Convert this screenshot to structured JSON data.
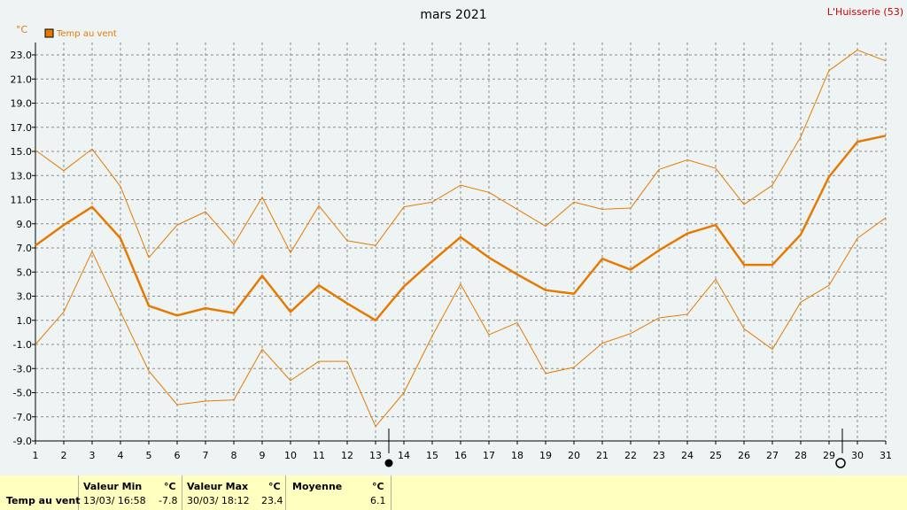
{
  "header": {
    "title": "mars 2021",
    "station": "L'Huisserie (53)",
    "unit": "°C"
  },
  "colors": {
    "background": "#eef4f4",
    "series": "#e67a00",
    "grid": "#909090",
    "station": "#cc0000",
    "stats_bg": "#ffffc0"
  },
  "chart_data": {
    "type": "line",
    "title": "mars 2021",
    "ylabel": "°C",
    "ylim": [
      -9,
      24
    ],
    "y_ticks": [
      "23.0",
      "21.0",
      "19.0",
      "17.0",
      "15.0",
      "13.0",
      "11.0",
      "9.0",
      "7.0",
      "5.0",
      "3.0",
      "1.0",
      "-1.0",
      "-3.0",
      "-5.0",
      "-7.0",
      "-9.0"
    ],
    "x": [
      1,
      2,
      3,
      4,
      5,
      6,
      7,
      8,
      9,
      10,
      11,
      12,
      13,
      14,
      15,
      16,
      17,
      18,
      19,
      20,
      21,
      22,
      23,
      24,
      25,
      26,
      27,
      28,
      29,
      30,
      31
    ],
    "legend": "top-left",
    "grid": true,
    "series": [
      {
        "name": "Temp au vent",
        "role": "mean",
        "values": [
          7.2,
          8.9,
          10.4,
          7.8,
          2.2,
          1.4,
          2.0,
          1.6,
          4.7,
          1.7,
          3.9,
          2.4,
          1.0,
          3.8,
          5.9,
          7.9,
          6.2,
          4.8,
          3.5,
          3.2,
          6.1,
          5.2,
          6.8,
          8.2,
          8.9,
          5.6,
          5.6,
          8.1,
          12.9,
          15.8,
          16.3
        ]
      },
      {
        "role": "max",
        "values": [
          15.1,
          13.4,
          15.2,
          12.1,
          6.2,
          8.9,
          10.0,
          7.3,
          11.2,
          6.6,
          10.5,
          7.6,
          7.2,
          10.4,
          10.8,
          12.2,
          11.6,
          10.2,
          8.8,
          10.8,
          10.2,
          10.3,
          13.5,
          14.3,
          13.6,
          10.6,
          12.2,
          16.2,
          21.7,
          23.4,
          22.5
        ]
      },
      {
        "role": "min",
        "values": [
          -1.0,
          1.7,
          6.7,
          1.7,
          -3.2,
          -6.0,
          -5.7,
          -5.6,
          -1.4,
          -4.0,
          -2.4,
          -2.4,
          -7.8,
          -5.0,
          -0.3,
          4.0,
          -0.2,
          0.8,
          -3.4,
          -2.9,
          -0.9,
          -0.1,
          1.2,
          1.5,
          4.4,
          0.3,
          -1.4,
          2.5,
          3.9,
          7.8,
          9.5
        ]
      }
    ],
    "moon_markers": [
      {
        "day": 13,
        "phase": "new"
      },
      {
        "day": 29,
        "phase": "full"
      }
    ]
  },
  "stats": {
    "row_label": "Temp au vent",
    "min_header": "Valeur Min",
    "min_unit": "°C",
    "min_time": "13/03/  16:58",
    "min_value": "-7.8",
    "max_header": "Valeur Max",
    "max_unit": "°C",
    "max_time": "30/03/  18:12",
    "max_value": "23.4",
    "avg_header": "Moyenne",
    "avg_unit": "°C",
    "avg_value": "6.1"
  }
}
